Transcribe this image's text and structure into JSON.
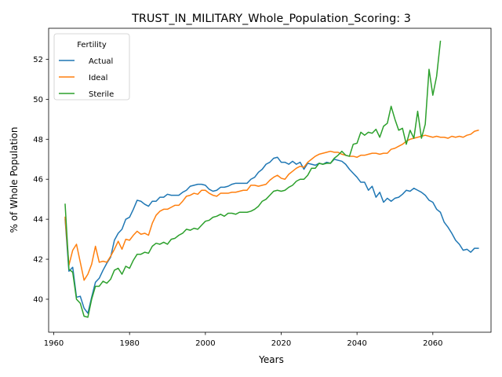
{
  "chart_data": {
    "type": "line",
    "title": "TRUST_IN_MILITARY_Whole_Population_Scoring: 3",
    "xlabel": "Years",
    "ylabel": "% of Whole Population",
    "xlim": [
      1958.65,
      1975.35
    ],
    "xlim_note": "",
    "x_range": [
      1958.65,
      2075.35
    ],
    "y_range": [
      38.35,
      53.55
    ],
    "x_ticks": [
      1960,
      1980,
      2000,
      2020,
      2040,
      2060
    ],
    "y_ticks": [
      40,
      42,
      44,
      46,
      48,
      50,
      52
    ],
    "x_tick_labels": [
      "1960",
      "1980",
      "2000",
      "2020",
      "2040",
      "2060"
    ],
    "y_tick_labels": [
      "40",
      "42",
      "44",
      "46",
      "48",
      "50",
      "52"
    ],
    "grid": false,
    "legend": {
      "title": "Fertility",
      "placement": "top-left"
    },
    "x_start_year": 1963,
    "series": [
      {
        "name": "Actual",
        "color": "#1f77b4",
        "values": [
          44.0,
          41.4,
          41.6,
          40.1,
          40.15,
          39.55,
          39.3,
          40.1,
          40.85,
          41.05,
          41.45,
          41.8,
          42.1,
          42.95,
          43.3,
          43.5,
          44.0,
          44.1,
          44.5,
          44.95,
          44.9,
          44.75,
          44.65,
          44.9,
          44.9,
          45.1,
          45.1,
          45.25,
          45.2,
          45.2,
          45.2,
          45.35,
          45.45,
          45.65,
          45.7,
          45.75,
          45.75,
          45.7,
          45.5,
          45.4,
          45.45,
          45.6,
          45.6,
          45.65,
          45.75,
          45.8,
          45.8,
          45.8,
          45.8,
          46.0,
          46.1,
          46.35,
          46.5,
          46.75,
          46.85,
          47.05,
          47.1,
          46.85,
          46.85,
          46.75,
          46.9,
          46.75,
          46.85,
          46.5,
          46.8,
          46.75,
          46.7,
          46.8,
          46.75,
          46.85,
          46.8,
          47.0,
          46.95,
          46.9,
          46.75,
          46.5,
          46.3,
          46.1,
          45.85,
          45.85,
          45.45,
          45.65,
          45.1,
          45.35,
          44.85,
          45.05,
          44.9,
          45.05,
          45.1,
          45.25,
          45.45,
          45.4,
          45.55,
          45.45,
          45.35,
          45.2,
          44.95,
          44.85,
          44.5,
          44.35,
          43.85,
          43.6,
          43.3,
          42.95,
          42.75,
          42.45,
          42.5,
          42.35,
          42.55,
          42.55
        ],
        "start_year": 1963
      },
      {
        "name": "Ideal",
        "color": "#ff7f0e",
        "values": [
          44.1,
          41.7,
          42.45,
          42.75,
          41.85,
          40.95,
          41.25,
          41.75,
          42.65,
          41.85,
          41.9,
          41.85,
          42.15,
          42.5,
          42.9,
          42.5,
          43.0,
          42.95,
          43.2,
          43.4,
          43.25,
          43.3,
          43.2,
          43.8,
          44.2,
          44.4,
          44.5,
          44.5,
          44.6,
          44.7,
          44.7,
          44.9,
          45.15,
          45.2,
          45.3,
          45.25,
          45.45,
          45.45,
          45.3,
          45.2,
          45.15,
          45.3,
          45.3,
          45.3,
          45.35,
          45.35,
          45.4,
          45.45,
          45.45,
          45.7,
          45.7,
          45.65,
          45.7,
          45.75,
          45.95,
          46.1,
          46.2,
          46.05,
          46.0,
          46.25,
          46.4,
          46.55,
          46.65,
          46.6,
          46.85,
          47.0,
          47.15,
          47.25,
          47.3,
          47.35,
          47.4,
          47.35,
          47.35,
          47.25,
          47.2,
          47.15,
          47.15,
          47.1,
          47.2,
          47.2,
          47.25,
          47.3,
          47.3,
          47.25,
          47.3,
          47.3,
          47.5,
          47.55,
          47.65,
          47.75,
          47.9,
          48.0,
          48.05,
          48.1,
          48.15,
          48.2,
          48.15,
          48.1,
          48.15,
          48.1,
          48.1,
          48.05,
          48.15,
          48.1,
          48.15,
          48.1,
          48.2,
          48.25,
          48.4,
          48.45
        ],
        "start_year": 1963
      },
      {
        "name": "Sterile",
        "color": "#2ca02c",
        "values": [
          44.75,
          41.5,
          41.35,
          40.0,
          39.8,
          39.15,
          39.1,
          40.0,
          40.65,
          40.65,
          40.9,
          40.8,
          41.0,
          41.45,
          41.55,
          41.25,
          41.65,
          41.55,
          41.95,
          42.25,
          42.25,
          42.35,
          42.3,
          42.65,
          42.8,
          42.75,
          42.85,
          42.75,
          43.0,
          43.05,
          43.2,
          43.3,
          43.5,
          43.45,
          43.55,
          43.5,
          43.7,
          43.9,
          43.95,
          44.1,
          44.15,
          44.25,
          44.15,
          44.3,
          44.3,
          44.25,
          44.35,
          44.35,
          44.35,
          44.4,
          44.5,
          44.65,
          44.9,
          45.0,
          45.2,
          45.4,
          45.45,
          45.4,
          45.45,
          45.6,
          45.7,
          45.9,
          46.0,
          46.0,
          46.2,
          46.55,
          46.55,
          46.8,
          46.75,
          46.8,
          46.8,
          47.05,
          47.2,
          47.4,
          47.2,
          47.15,
          47.75,
          47.8,
          48.35,
          48.2,
          48.35,
          48.3,
          48.5,
          48.1,
          48.65,
          48.8,
          49.65,
          49.0,
          48.45,
          48.55,
          47.75,
          48.45,
          48.05,
          49.4,
          48.05,
          48.75,
          51.5,
          50.2,
          51.15,
          52.9
        ],
        "start_year": 1963
      }
    ]
  }
}
